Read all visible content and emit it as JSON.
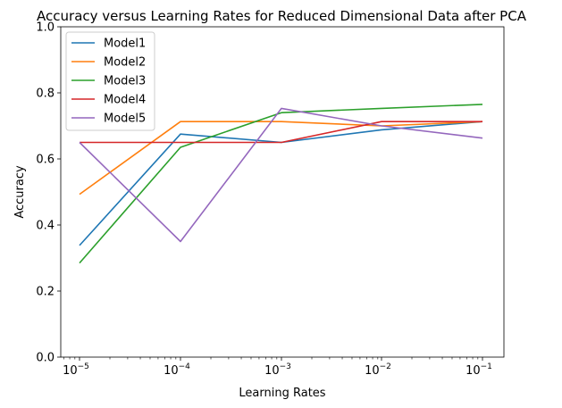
{
  "chart_data": {
    "type": "line",
    "title": "Accuracy versus Learning Rates for Reduced Dimensional Data after PCA",
    "xlabel": "Learning Rates",
    "ylabel": "Accuracy",
    "xscale": "log",
    "x": [
      1e-05,
      0.0001,
      0.001,
      0.01,
      0.1
    ],
    "x_tick_labels": [
      {
        "base": "10",
        "exp": "−5"
      },
      {
        "base": "10",
        "exp": "−4"
      },
      {
        "base": "10",
        "exp": "−3"
      },
      {
        "base": "10",
        "exp": "−2"
      },
      {
        "base": "10",
        "exp": "−1"
      }
    ],
    "ylim": [
      0.0,
      1.0
    ],
    "y_ticks": [
      "0.0",
      "0.2",
      "0.4",
      "0.6",
      "0.8",
      "1.0"
    ],
    "legend_position": "top-left",
    "grid": false,
    "series": [
      {
        "name": "Model1",
        "color": "#1f77b4",
        "values": [
          0.338,
          0.675,
          0.65,
          0.688,
          0.713
        ]
      },
      {
        "name": "Model2",
        "color": "#ff7f0e",
        "values": [
          0.493,
          0.713,
          0.713,
          0.7,
          0.713
        ]
      },
      {
        "name": "Model3",
        "color": "#2ca02c",
        "values": [
          0.285,
          0.635,
          0.74,
          0.753,
          0.765
        ]
      },
      {
        "name": "Model4",
        "color": "#d62728",
        "values": [
          0.65,
          0.65,
          0.65,
          0.713,
          0.713
        ]
      },
      {
        "name": "Model5",
        "color": "#9467bd",
        "values": [
          0.65,
          0.35,
          0.753,
          0.7,
          0.663
        ]
      }
    ]
  }
}
